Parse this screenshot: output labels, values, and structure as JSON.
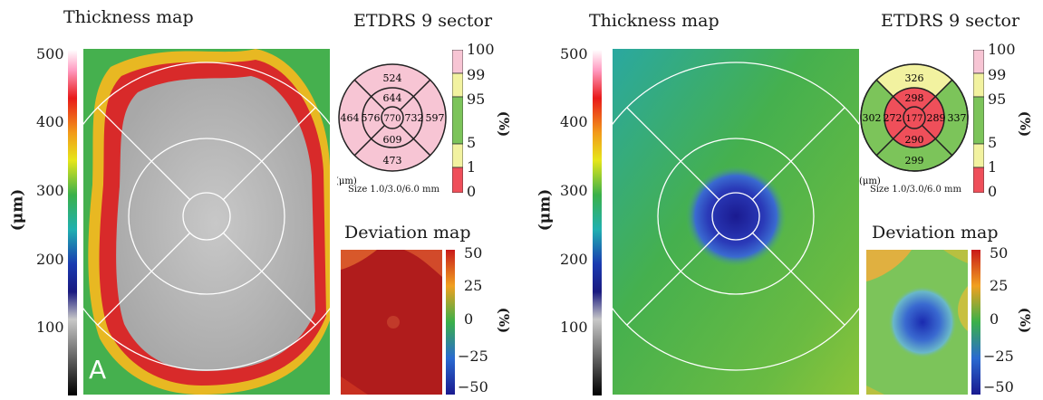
{
  "panels": [
    {
      "id": "A",
      "thickness_title": "Thickness map",
      "etdrs_title": "ETDRS 9 sector",
      "deviation_title": "Deviation map",
      "panel_letter": "A",
      "thickness_unit": "(μm)",
      "thickness_scale": [
        "500",
        "400",
        "300",
        "200",
        "100"
      ],
      "percent_unit": "(%)",
      "percent_scale": [
        "100",
        "99",
        "95",
        "5",
        "1",
        "0"
      ],
      "etdrs_unit": "(μm)",
      "etdrs_size": "Size 1.0/3.0/6.0 mm",
      "deviation_unit": "(%)",
      "deviation_scale": [
        "50",
        "25",
        "0",
        "−25",
        "−50"
      ],
      "sectors": {
        "center": "770",
        "inner_superior": "644",
        "inner_nasal": "732",
        "inner_inferior": "609",
        "inner_temporal": "576",
        "outer_superior": "524",
        "outer_nasal": "597",
        "outer_inferior": "473",
        "outer_temporal": "464"
      },
      "sector_colors": {
        "center": "#f7c5d4",
        "inner": "#f7c5d4",
        "outer": "#f7c5d4",
        "outer_superior": "#f7c5d4",
        "outer_nasal": "#f7c5d4",
        "outer_inferior": "#f7c5d4",
        "outer_temporal": "#f7c5d4"
      }
    },
    {
      "id": "B",
      "thickness_title": "Thickness map",
      "etdrs_title": "ETDRS 9 sector",
      "deviation_title": "Deviation map",
      "panel_letter": "",
      "thickness_unit": "(μm)",
      "thickness_scale": [
        "500",
        "400",
        "300",
        "200",
        "100"
      ],
      "percent_unit": "(%)",
      "percent_scale": [
        "100",
        "99",
        "95",
        "5",
        "1",
        "0"
      ],
      "etdrs_unit": "(μm)",
      "etdrs_size": "Size 1.0/3.0/6.0 mm",
      "deviation_unit": "(%)",
      "deviation_scale": [
        "50",
        "25",
        "0",
        "−25",
        "−50"
      ],
      "sectors": {
        "center": "177",
        "inner_superior": "298",
        "inner_nasal": "289",
        "inner_inferior": "290",
        "inner_temporal": "272",
        "outer_superior": "326",
        "outer_nasal": "337",
        "outer_inferior": "299",
        "outer_temporal": "302"
      },
      "sector_colors": {
        "center": "#ef4f5a",
        "inner": "#ef4f5a",
        "outer": "#7cc45a",
        "outer_superior": "#f2f2a0",
        "outer_nasal": "#7cc45a",
        "outer_inferior": "#7cc45a",
        "outer_temporal": "#7cc45a"
      }
    }
  ]
}
